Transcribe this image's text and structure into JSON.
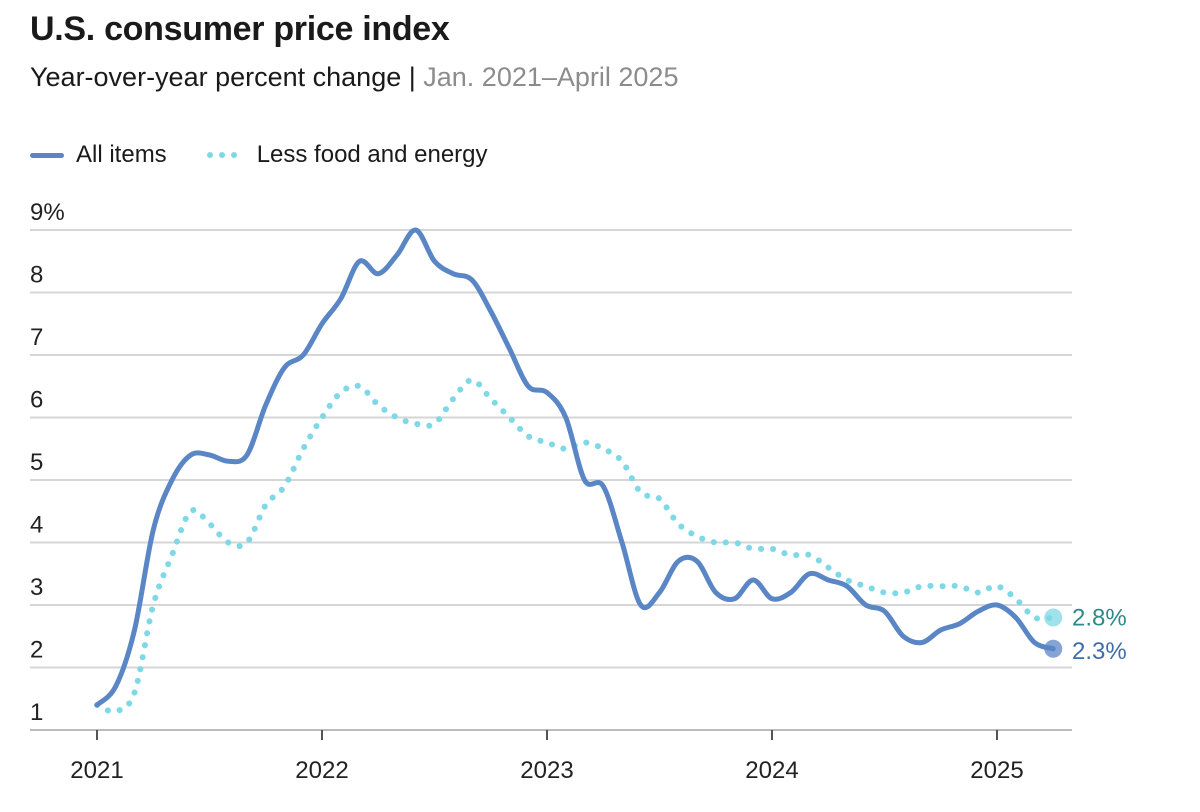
{
  "header": {
    "title": "U.S. consumer price index",
    "subtitle_main": "Year-over-year percent change",
    "subtitle_sep": " | ",
    "subtitle_range": "Jan. 2021–April 2025"
  },
  "colors": {
    "all_items": "#5a86c5",
    "core": "#7fd8e6",
    "grid": "#d6d6d6",
    "axis_text": "#222222",
    "label_all": "#3e6ea8",
    "label_core": "#2e8a8a"
  },
  "chart_data": {
    "type": "line",
    "title": "U.S. consumer price index",
    "subtitle": "Year-over-year percent change | Jan. 2021–April 2025",
    "xlabel": "",
    "ylabel": "",
    "ylim": [
      1,
      9
    ],
    "yticks": [
      1,
      2,
      3,
      4,
      5,
      6,
      7,
      8,
      9
    ],
    "ytick_labels": [
      "1",
      "2",
      "3",
      "4",
      "5",
      "6",
      "7",
      "8",
      "9%"
    ],
    "xtick_labels": [
      "2021",
      "2022",
      "2023",
      "2024",
      "2025"
    ],
    "x": [
      "2021-01",
      "2021-02",
      "2021-03",
      "2021-04",
      "2021-05",
      "2021-06",
      "2021-07",
      "2021-08",
      "2021-09",
      "2021-10",
      "2021-11",
      "2021-12",
      "2022-01",
      "2022-02",
      "2022-03",
      "2022-04",
      "2022-05",
      "2022-06",
      "2022-07",
      "2022-08",
      "2022-09",
      "2022-10",
      "2022-11",
      "2022-12",
      "2023-01",
      "2023-02",
      "2023-03",
      "2023-04",
      "2023-05",
      "2023-06",
      "2023-07",
      "2023-08",
      "2023-09",
      "2023-10",
      "2023-11",
      "2023-12",
      "2024-01",
      "2024-02",
      "2024-03",
      "2024-04",
      "2024-05",
      "2024-06",
      "2024-07",
      "2024-08",
      "2024-09",
      "2024-10",
      "2024-11",
      "2024-12",
      "2025-01",
      "2025-02",
      "2025-03",
      "2025-04"
    ],
    "grid": true,
    "legend_position": "top-left",
    "series": [
      {
        "name": "All items",
        "style": "solid",
        "values": [
          1.4,
          1.7,
          2.6,
          4.2,
          5.0,
          5.4,
          5.4,
          5.3,
          5.4,
          6.2,
          6.8,
          7.0,
          7.5,
          7.9,
          8.5,
          8.3,
          8.6,
          9.0,
          8.5,
          8.3,
          8.2,
          7.7,
          7.1,
          6.5,
          6.4,
          6.0,
          5.0,
          4.9,
          4.0,
          3.0,
          3.2,
          3.7,
          3.7,
          3.2,
          3.1,
          3.4,
          3.1,
          3.2,
          3.5,
          3.4,
          3.3,
          3.0,
          2.9,
          2.5,
          2.4,
          2.6,
          2.7,
          2.9,
          3.0,
          2.8,
          2.4,
          2.3
        ],
        "end_label": "2.3%"
      },
      {
        "name": "Less food and energy",
        "style": "dotted",
        "values": [
          1.4,
          1.3,
          1.6,
          3.0,
          3.8,
          4.5,
          4.3,
          4.0,
          4.0,
          4.6,
          4.9,
          5.5,
          6.0,
          6.4,
          6.5,
          6.2,
          6.0,
          5.9,
          5.9,
          6.3,
          6.6,
          6.3,
          6.0,
          5.7,
          5.6,
          5.5,
          5.6,
          5.5,
          5.3,
          4.8,
          4.7,
          4.3,
          4.1,
          4.0,
          4.0,
          3.9,
          3.9,
          3.8,
          3.8,
          3.6,
          3.4,
          3.3,
          3.2,
          3.2,
          3.3,
          3.3,
          3.3,
          3.2,
          3.3,
          3.1,
          2.8,
          2.8
        ],
        "end_label": "2.8%"
      }
    ]
  }
}
